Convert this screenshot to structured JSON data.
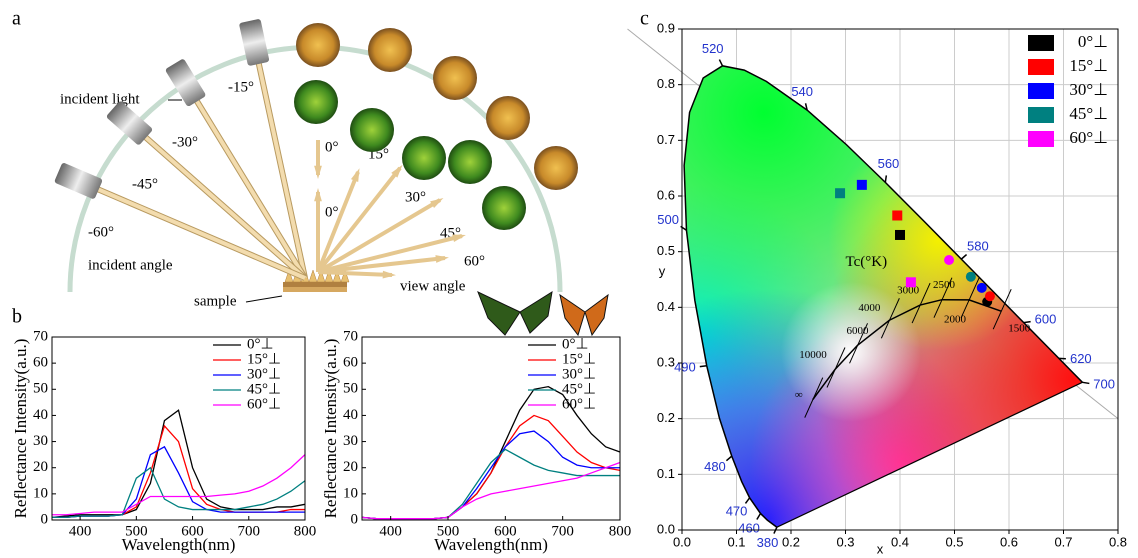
{
  "panel_a": {
    "label": "a",
    "incident_light": "incident light",
    "incident_angles": [
      "-15°",
      "-30°",
      "-45°",
      "-60°",
      "0°"
    ],
    "view_angles": [
      "0°",
      "15°",
      "30°",
      "45°",
      "60°"
    ],
    "incident_angle_label": "incident angle",
    "view_angle_label": "view angle",
    "sample": "sample"
  },
  "chart_data": [
    {
      "type": "line",
      "panel_label": "b",
      "xlabel": "Wavelength(nm)",
      "ylabel": "Reflectance Intensity(a.u.)",
      "legend": "upper right",
      "x": [
        350,
        375,
        400,
        425,
        450,
        475,
        500,
        525,
        550,
        575,
        600,
        625,
        650,
        675,
        700,
        725,
        750,
        775,
        800
      ],
      "xlim": [
        350,
        800
      ],
      "xticks": [
        400,
        500,
        600,
        700,
        800
      ],
      "ylim": [
        0,
        70
      ],
      "yticks": [
        0,
        10,
        20,
        30,
        40,
        50,
        60,
        70
      ],
      "series": [
        {
          "name": "0°⊥",
          "color": "#000000",
          "values": [
            1,
            1.5,
            2,
            2,
            2,
            2,
            4,
            14,
            38,
            42,
            20,
            8,
            5,
            4,
            4,
            4,
            5,
            5,
            6
          ]
        },
        {
          "name": "15°⊥",
          "color": "#ff0000",
          "values": [
            1,
            1,
            1.5,
            1.5,
            1.5,
            2,
            5,
            18,
            36,
            30,
            12,
            6,
            4,
            3,
            3,
            3,
            3,
            4,
            4
          ]
        },
        {
          "name": "30°⊥",
          "color": "#0000ff",
          "values": [
            1,
            1,
            1.5,
            1.5,
            1.5,
            2,
            8,
            25,
            28,
            18,
            7,
            4,
            3,
            3,
            3,
            3,
            3,
            3,
            3
          ]
        },
        {
          "name": "45°⊥",
          "color": "#008080",
          "values": [
            1,
            1,
            1.5,
            1.5,
            1.5,
            2,
            16,
            20,
            8,
            5,
            4,
            4,
            4,
            4,
            5,
            6,
            8,
            11,
            15
          ]
        },
        {
          "name": "60°⊥",
          "color": "#ff00ff",
          "values": [
            2,
            2,
            2.5,
            3,
            3,
            3,
            6,
            9,
            9,
            9,
            9,
            9,
            9.5,
            10,
            11,
            13,
            16,
            20,
            25
          ]
        }
      ]
    },
    {
      "type": "line",
      "xlabel": "Wavelength(nm)",
      "ylabel": "Reflectance Intensity(a.u.)",
      "legend": "upper right",
      "x": [
        350,
        375,
        400,
        425,
        450,
        475,
        500,
        525,
        550,
        575,
        600,
        625,
        650,
        675,
        700,
        725,
        750,
        775,
        800
      ],
      "xlim": [
        350,
        800
      ],
      "xticks": [
        400,
        500,
        600,
        700,
        800
      ],
      "ylim": [
        0,
        70
      ],
      "yticks": [
        0,
        10,
        20,
        30,
        40,
        50,
        60,
        70
      ],
      "series": [
        {
          "name": "0°⊥",
          "color": "#000000",
          "values": [
            1,
            0.5,
            0.5,
            0.5,
            0.5,
            0.5,
            1,
            5,
            10,
            18,
            30,
            42,
            50,
            51,
            48,
            40,
            33,
            28,
            26
          ]
        },
        {
          "name": "15°⊥",
          "color": "#ff0000",
          "values": [
            1,
            0.5,
            0.5,
            0.5,
            0.5,
            0.5,
            1,
            5,
            10,
            18,
            28,
            36,
            40,
            38,
            32,
            26,
            22,
            20,
            19
          ]
        },
        {
          "name": "30°⊥",
          "color": "#0000ff",
          "values": [
            1,
            0.5,
            0.5,
            0.5,
            0.5,
            0.5,
            1,
            5,
            12,
            20,
            28,
            33,
            34,
            30,
            24,
            21,
            20,
            20,
            20
          ]
        },
        {
          "name": "45°⊥",
          "color": "#008080",
          "values": [
            1,
            0.5,
            0.5,
            0.5,
            0.5,
            0.5,
            1,
            6,
            14,
            22,
            27,
            24,
            21,
            19,
            18,
            17,
            17,
            17,
            17
          ]
        },
        {
          "name": "60°⊥",
          "color": "#ff00ff",
          "values": [
            1,
            0.5,
            0.5,
            0.5,
            0.5,
            0.5,
            1,
            5,
            8,
            10,
            11,
            12,
            13,
            14,
            15,
            16,
            18,
            20,
            22
          ]
        }
      ]
    },
    {
      "type": "scatter",
      "panel_label": "c",
      "xlabel": "x",
      "ylabel": "y",
      "grid": true,
      "legend": "upper right",
      "markers": [
        "square",
        "circle"
      ],
      "xlim": [
        0,
        0.8
      ],
      "xticks": [
        {
          "value": 0,
          "label": "0.0"
        },
        0.1,
        0.2,
        0.3,
        0.4,
        0.5,
        0.6,
        0.7,
        0.8
      ],
      "ylim": [
        0,
        0.9
      ],
      "yticks": [
        {
          "value": 0,
          "label": "0.0"
        },
        0.1,
        0.2,
        0.3,
        0.4,
        0.5,
        0.6,
        0.7,
        0.8,
        0.9
      ],
      "series": [
        {
          "name": "0°⊥",
          "color": "#000000",
          "x": [
            0.4,
            0.56
          ],
          "values": [
            0.53,
            0.41
          ]
        },
        {
          "name": "15°⊥",
          "color": "#ff0000",
          "x": [
            0.395,
            0.565
          ],
          "values": [
            0.565,
            0.42
          ]
        },
        {
          "name": "30°⊥",
          "color": "#0000ff",
          "x": [
            0.33,
            0.55
          ],
          "values": [
            0.62,
            0.435
          ]
        },
        {
          "name": "45°⊥",
          "color": "#008080",
          "x": [
            0.29,
            0.53
          ],
          "values": [
            0.605,
            0.455
          ]
        },
        {
          "name": "60°⊥",
          "color": "#ff00ff",
          "x": [
            0.42,
            0.49
          ],
          "values": [
            0.445,
            0.485
          ]
        }
      ],
      "spectral_locus": {
        "x": [
          0.1741,
          0.1566,
          0.144,
          0.1241,
          0.1096,
          0.0913,
          0.0687,
          0.0454,
          0.0235,
          0.0082,
          0.0039,
          0.0139,
          0.0389,
          0.0743,
          0.1142,
          0.1547,
          0.2296,
          0.3016,
          0.3731,
          0.4441,
          0.5125,
          0.5752,
          0.627,
          0.6915,
          0.719,
          0.7347
        ],
        "y": [
          0.005,
          0.0177,
          0.0297,
          0.0578,
          0.0868,
          0.1327,
          0.2007,
          0.295,
          0.4127,
          0.5384,
          0.6548,
          0.7502,
          0.812,
          0.8338,
          0.8262,
          0.8059,
          0.7543,
          0.6923,
          0.6245,
          0.5547,
          0.4866,
          0.4242,
          0.3725,
          0.3083,
          0.2809,
          0.2653
        ]
      },
      "spectral_labels": {
        "text": [
          "380",
          "460",
          "470",
          "480",
          "490",
          "500",
          "520",
          "540",
          "560",
          "580",
          "600",
          "620",
          "700"
        ],
        "x": [
          0.1741,
          0.144,
          0.1241,
          0.0913,
          0.0454,
          0.0082,
          0.0743,
          0.2296,
          0.3731,
          0.5125,
          0.627,
          0.6915,
          0.7347
        ],
        "y": [
          0.005,
          0.0297,
          0.0578,
          0.1327,
          0.295,
          0.5384,
          0.8338,
          0.7543,
          0.6245,
          0.4866,
          0.3725,
          0.3083,
          0.2653
        ]
      },
      "planck_title": "Tc(°K)",
      "planckian_locus": {
        "temperatures": [
          "1500",
          "2000",
          "2500",
          "3000",
          "4000",
          "6000",
          "10000",
          "∞"
        ],
        "x": [
          0.5857,
          0.5267,
          0.477,
          0.4369,
          0.3805,
          0.3221,
          0.2807,
          0.2399
        ],
        "y": [
          0.3931,
          0.4133,
          0.4137,
          0.4041,
          0.3768,
          0.3318,
          0.2883,
          0.2342
        ]
      }
    }
  ]
}
